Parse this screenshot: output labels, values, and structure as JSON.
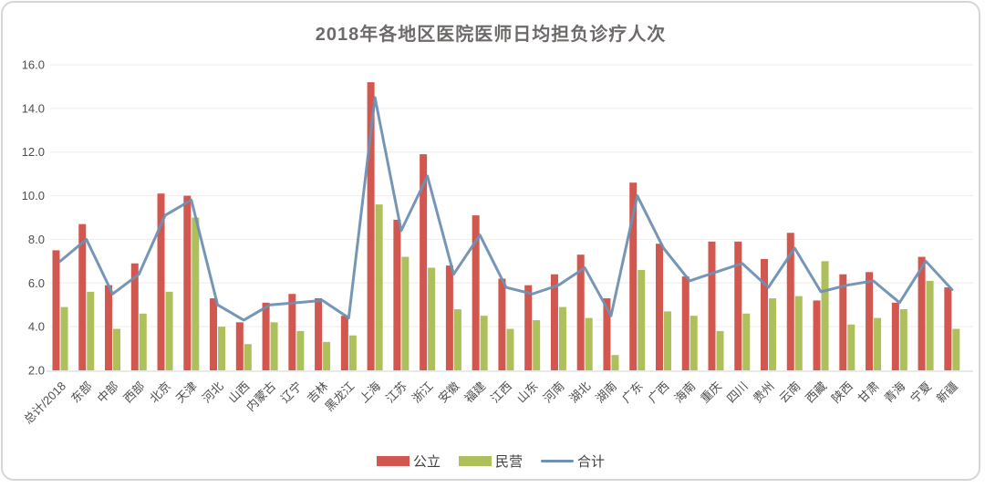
{
  "chart_data": {
    "type": "bar",
    "title": "2018年各地区医院医师日均担负诊疗人次",
    "categories": [
      "总计/2018",
      "东部",
      "中部",
      "西部",
      "北京",
      "天津",
      "河北",
      "山西",
      "内蒙古",
      "辽宁",
      "吉林",
      "黑龙江",
      "上海",
      "江苏",
      "浙江",
      "安徽",
      "福建",
      "江西",
      "山东",
      "河南",
      "湖北",
      "湖南",
      "广东",
      "广西",
      "海南",
      "重庆",
      "四川",
      "贵州",
      "云南",
      "西藏",
      "陕西",
      "甘肃",
      "青海",
      "宁夏",
      "新疆"
    ],
    "series": [
      {
        "name": "公立",
        "type": "bar",
        "color": "#d2574e",
        "values": [
          7.5,
          8.7,
          5.9,
          6.9,
          10.1,
          10.0,
          5.3,
          4.2,
          5.1,
          5.5,
          5.3,
          4.5,
          15.2,
          8.9,
          11.9,
          6.8,
          9.1,
          6.2,
          5.9,
          6.4,
          7.3,
          5.3,
          10.6,
          7.8,
          6.3,
          7.9,
          7.9,
          7.1,
          8.3,
          5.2,
          6.4,
          6.5,
          5.1,
          7.2,
          5.8
        ]
      },
      {
        "name": "民营",
        "type": "bar",
        "color": "#aec05c",
        "values": [
          4.9,
          5.6,
          3.9,
          4.6,
          5.6,
          9.0,
          4.0,
          3.2,
          4.2,
          3.8,
          3.3,
          3.6,
          9.6,
          7.2,
          6.7,
          4.8,
          4.5,
          3.9,
          4.3,
          4.9,
          4.4,
          2.7,
          6.6,
          4.7,
          4.5,
          3.8,
          4.6,
          5.3,
          5.4,
          7.0,
          4.1,
          4.4,
          4.8,
          6.1,
          3.9
        ]
      },
      {
        "name": "合计",
        "type": "line",
        "color": "#6f90b2",
        "values": [
          7.0,
          8.0,
          5.5,
          6.4,
          9.1,
          9.8,
          5.0,
          4.3,
          5.0,
          5.1,
          5.2,
          4.4,
          14.5,
          8.4,
          10.9,
          6.4,
          8.2,
          5.8,
          5.5,
          5.9,
          6.7,
          4.5,
          10.0,
          7.6,
          6.1,
          6.5,
          6.9,
          5.8,
          7.6,
          5.6,
          5.9,
          6.1,
          5.1,
          7.0,
          5.7
        ]
      }
    ],
    "xlabel": "",
    "ylabel": "",
    "ylim": [
      2.0,
      16.0
    ],
    "ytick_step": 2.0,
    "ytick_labels": [
      "2.0",
      "4.0",
      "6.0",
      "8.0",
      "10.0",
      "12.0",
      "14.0",
      "16.0"
    ],
    "grid": true,
    "legend_position": "bottom",
    "colors": {
      "grid_line": "#f3efef",
      "axis_line": "#e4e1e1",
      "tick_text": "#4e4e4e",
      "title_text": "#6e6a6a",
      "background": "#ffffff",
      "border": "#d8d5d5"
    }
  }
}
